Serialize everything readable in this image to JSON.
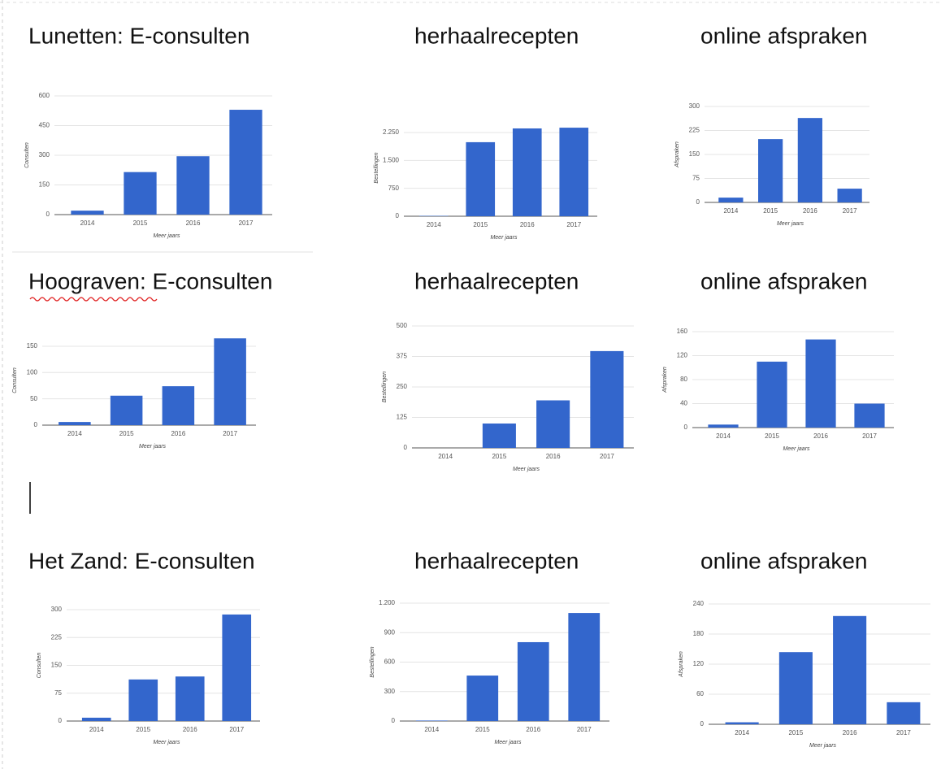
{
  "chart_data": [
    {
      "type": "bar",
      "title": "Lunetten: E-consulten",
      "y_label": "Consulten",
      "x_label": "Meer jaars",
      "categories": [
        "2014",
        "2015",
        "2016",
        "2017"
      ],
      "values": [
        20,
        215,
        295,
        530
      ],
      "color": "#3366cc",
      "ylim": [
        0,
        600
      ],
      "yticks": [
        0,
        150,
        300,
        450,
        600
      ],
      "grid": true
    },
    {
      "type": "bar",
      "title": "herhaalrecepten",
      "y_label": "Bestellingen",
      "x_label": "Meer jaars",
      "categories": [
        "2014",
        "2015",
        "2016",
        "2017"
      ],
      "values": [
        10,
        1990,
        2360,
        2380
      ],
      "color": "#3366cc",
      "ylim": [
        0,
        2600
      ],
      "yticks": [
        0,
        750,
        {
          "value": 1500,
          "label": "1.500"
        },
        {
          "value": 2250,
          "label": "2.250"
        }
      ],
      "grid": true
    },
    {
      "type": "bar",
      "title": "online afspraken",
      "y_label": "Afspraken",
      "x_label": "Meer jaars",
      "categories": [
        "2014",
        "2015",
        "2016",
        "2017"
      ],
      "values": [
        15,
        198,
        264,
        43
      ],
      "color": "#3366cc",
      "ylim": [
        0,
        300
      ],
      "yticks": [
        0,
        75,
        150,
        225,
        300
      ],
      "grid": true
    },
    {
      "type": "bar",
      "title": "Hoograven: E-consulten",
      "y_label": "Consulten",
      "x_label": "Meer jaars",
      "categories": [
        "2014",
        "2015",
        "2016",
        "2017"
      ],
      "values": [
        6,
        56,
        74,
        165
      ],
      "color": "#3366cc",
      "ylim": [
        0,
        170
      ],
      "yticks": [
        0,
        50,
        100,
        150
      ],
      "grid": true
    },
    {
      "type": "bar",
      "title": "herhaalrecepten",
      "y_label": "Bestellingen",
      "x_label": "Meer jaars",
      "categories": [
        "2014",
        "2015",
        "2016",
        "2017"
      ],
      "values": [
        0,
        100,
        195,
        397
      ],
      "color": "#3366cc",
      "ylim": [
        0,
        500
      ],
      "yticks": [
        0,
        125,
        250,
        375,
        500
      ],
      "grid": true
    },
    {
      "type": "bar",
      "title": "online afspraken",
      "y_label": "Afspraken",
      "x_label": "Meer jaars",
      "categories": [
        "2014",
        "2015",
        "2016",
        "2017"
      ],
      "values": [
        5,
        110,
        147,
        40
      ],
      "color": "#3366cc",
      "ylim": [
        0,
        160
      ],
      "yticks": [
        0,
        40,
        80,
        120,
        160
      ],
      "grid": true
    },
    {
      "type": "bar",
      "title": "Het Zand: E-consulten",
      "y_label": "Consulten",
      "x_label": "Meer jaars",
      "categories": [
        "2014",
        "2015",
        "2016",
        "2017"
      ],
      "values": [
        9,
        112,
        120,
        287
      ],
      "color": "#3366cc",
      "ylim": [
        0,
        300
      ],
      "yticks": [
        0,
        75,
        150,
        225,
        300
      ],
      "grid": true
    },
    {
      "type": "bar",
      "title": "herhaalrecepten",
      "y_label": "Bestellingen",
      "x_label": "Meer jaars",
      "categories": [
        "2014",
        "2015",
        "2016",
        "2017"
      ],
      "values": [
        5,
        463,
        803,
        1100
      ],
      "color": "#3366cc",
      "ylim": [
        0,
        1200
      ],
      "yticks": [
        0,
        300,
        600,
        900,
        {
          "value": 1200,
          "label": "1.200"
        }
      ],
      "grid": true
    },
    {
      "type": "bar",
      "title": "online afspraken",
      "y_label": "Afspraken",
      "x_label": "Meer jaars",
      "categories": [
        "2014",
        "2015",
        "2016",
        "2017"
      ],
      "values": [
        4,
        144,
        216,
        44
      ],
      "color": "#3366cc",
      "ylim": [
        0,
        240
      ],
      "yticks": [
        0,
        60,
        120,
        180,
        240
      ],
      "grid": true
    }
  ]
}
